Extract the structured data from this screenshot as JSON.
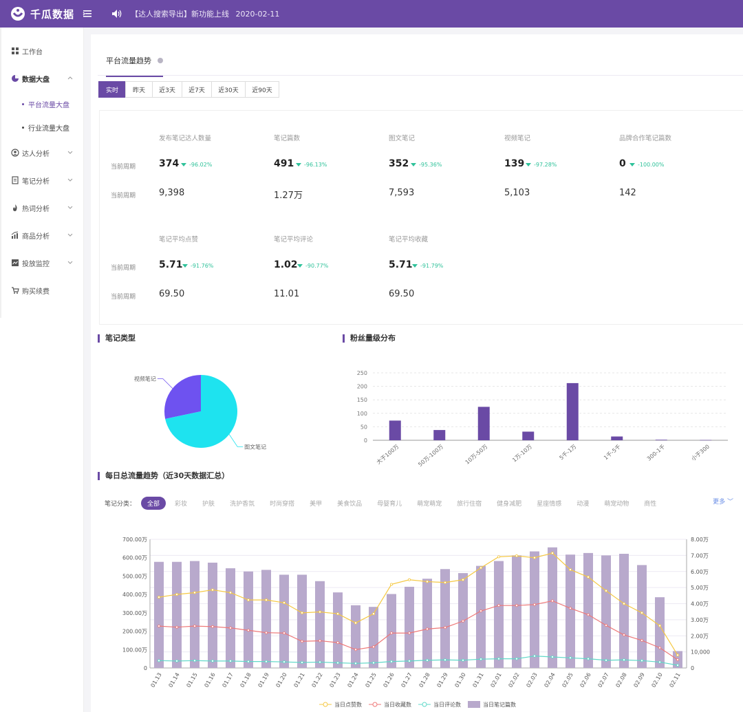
{
  "app": {
    "name": "千瓜数据"
  },
  "notice": {
    "text": "【达人搜索导出】新功能上线",
    "date": "2020-02-11"
  },
  "sidebar": {
    "items": [
      {
        "label": "工作台"
      },
      {
        "label": "数据大盘"
      },
      {
        "label": "达人分析"
      },
      {
        "label": "笔记分析"
      },
      {
        "label": "热词分析"
      },
      {
        "label": "商品分析"
      },
      {
        "label": "投放监控"
      },
      {
        "label": "购买续费"
      }
    ],
    "sub_items": [
      {
        "label": "平台流量大盘"
      },
      {
        "label": "行业流量大盘"
      }
    ]
  },
  "page": {
    "tab_label": "平台流量趋势",
    "ranges": [
      "实时",
      "昨天",
      "近3天",
      "近7天",
      "近30天",
      "近90天"
    ]
  },
  "metrics": {
    "current_label": "当前周期",
    "prev_label": "当前周期",
    "row1": [
      {
        "title": "发布笔记达人数量",
        "value": "374",
        "change": "-96.02%",
        "prev": "9,398"
      },
      {
        "title": "笔记篇数",
        "value": "491",
        "change": "-96.13%",
        "prev": "1.27万"
      },
      {
        "title": "图文笔记",
        "value": "352",
        "change": "-95.36%",
        "prev": "7,593"
      },
      {
        "title": "视频笔记",
        "value": "139",
        "change": "-97.28%",
        "prev": "5,103"
      },
      {
        "title": "品牌合作笔记篇数",
        "value": "0",
        "change": "-100.00%",
        "prev": "142"
      }
    ],
    "row2": [
      {
        "title": "笔记平均点赞",
        "value": "5.71",
        "change": "-91.76%",
        "prev": "69.50"
      },
      {
        "title": "笔记平均评论",
        "value": "1.02",
        "change": "-90.77%",
        "prev": "11.01"
      },
      {
        "title": "笔记平均收藏",
        "value": "5.71",
        "change": "-91.79%",
        "prev": "69.50"
      }
    ]
  },
  "sections": {
    "note_type": "笔记类型",
    "fans": "粉丝量级分布",
    "daily": "每日总流量趋势（近30天数据汇总）"
  },
  "filters": {
    "label": "笔记分类：",
    "chips": [
      "全部",
      "彩妆",
      "护肤",
      "洗护香氛",
      "时尚穿搭",
      "美甲",
      "美食饮品",
      "母婴育儿",
      "萌宠萌宠",
      "旅行住宿",
      "健身减肥",
      "星座情感",
      "动漫",
      "萌宠动物",
      "商性"
    ],
    "more": "更多"
  },
  "chart_data": [
    {
      "type": "pie",
      "title": "笔记类型",
      "categories": [
        "视频笔记",
        "图文笔记"
      ],
      "values": [
        139,
        352
      ],
      "colors": [
        "#6e52f0",
        "#1ee3ef"
      ]
    },
    {
      "type": "bar",
      "title": "粉丝量级分布",
      "categories": [
        "大于100万",
        "50万-100万",
        "10万-50万",
        "1万-10万",
        "5千-1万",
        "1千-5千",
        "300-1千",
        "小于300"
      ],
      "values": [
        73,
        38,
        124,
        32,
        212,
        14,
        2,
        1
      ],
      "ylim": [
        0,
        250
      ],
      "yticks": [
        0,
        50,
        100,
        150,
        200,
        250
      ],
      "color": "#6a4aa5"
    },
    {
      "type": "bar",
      "title": "每日总流量趋势（近30天数据汇总）",
      "categories": [
        "01.13",
        "01.14",
        "01.15",
        "01.16",
        "01.17",
        "01.18",
        "01.19",
        "01.20",
        "01.21",
        "01.22",
        "01.23",
        "01.24",
        "01.25",
        "01.26",
        "01.27",
        "01.28",
        "01.29",
        "01.30",
        "01.31",
        "02.01",
        "02.02",
        "02.03",
        "02.04",
        "02.05",
        "02.06",
        "02.07",
        "02.08",
        "02.09",
        "02.10",
        "02.11"
      ],
      "left_axis": {
        "ticks": [
          "0",
          "100.00万",
          "200.00万",
          "300.00万",
          "400.00万",
          "500.00万",
          "600.00万",
          "700.00万"
        ],
        "ylim": [
          0,
          700
        ]
      },
      "right_axis": {
        "ticks": [
          "0",
          "10,000",
          "2.00万",
          "3.00万",
          "4.00万",
          "5.00万",
          "6.00万",
          "7.00万",
          "8.00万"
        ],
        "ylim": [
          0,
          80000
        ]
      },
      "series": [
        {
          "name": "当日点赞数",
          "axis": "left",
          "kind": "line",
          "color": "#f5c842",
          "values": [
            385,
            400,
            410,
            425,
            410,
            370,
            370,
            355,
            300,
            305,
            295,
            245,
            295,
            455,
            480,
            470,
            465,
            480,
            545,
            605,
            610,
            600,
            625,
            535,
            495,
            420,
            350,
            300,
            230,
            70
          ]
        },
        {
          "name": "当日收藏数",
          "axis": "left",
          "kind": "line",
          "color": "#ee7878",
          "values": [
            228,
            222,
            228,
            225,
            218,
            205,
            192,
            190,
            145,
            148,
            138,
            100,
            115,
            190,
            190,
            212,
            220,
            255,
            310,
            340,
            340,
            345,
            365,
            325,
            290,
            232,
            180,
            150,
            110,
            45
          ]
        },
        {
          "name": "当日评论数",
          "axis": "left",
          "kind": "line",
          "color": "#5fd8c8",
          "values": [
            40,
            38,
            40,
            38,
            38,
            35,
            35,
            33,
            30,
            32,
            28,
            25,
            28,
            35,
            38,
            42,
            44,
            42,
            48,
            50,
            50,
            65,
            60,
            55,
            50,
            42,
            44,
            40,
            32,
            15
          ]
        },
        {
          "name": "当日笔记篇数",
          "axis": "right",
          "kind": "bar",
          "color": "#b8a9cc",
          "values": [
            66000,
            66000,
            66500,
            65500,
            62000,
            60000,
            61000,
            58000,
            58000,
            54000,
            47000,
            39000,
            38000,
            46000,
            50500,
            55500,
            61500,
            59000,
            63500,
            66500,
            70000,
            72500,
            75000,
            70500,
            71500,
            70000,
            71000,
            64000,
            44000,
            10500
          ]
        }
      ]
    }
  ]
}
